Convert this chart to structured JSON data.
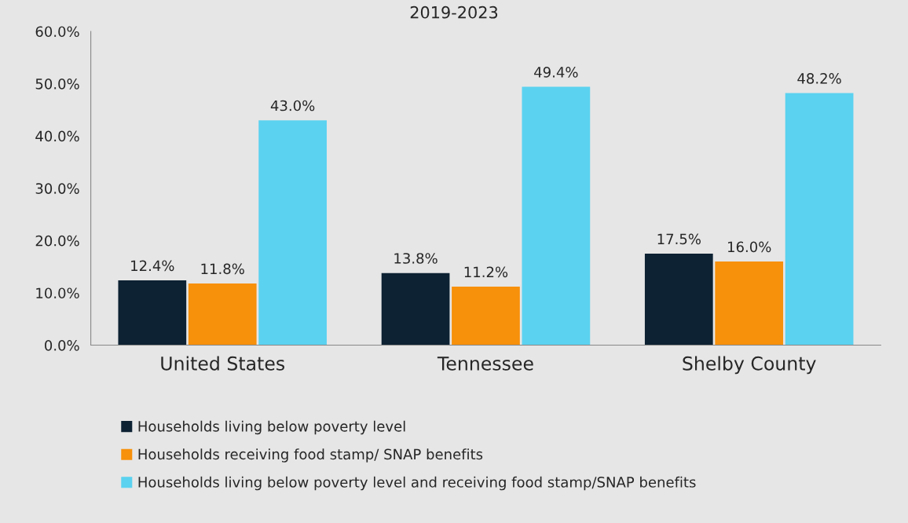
{
  "chart_data": {
    "type": "bar",
    "title": "2019-2023",
    "categories": [
      "United States",
      "Tennessee",
      "Shelby County"
    ],
    "series": [
      {
        "name": "Households living below poverty level",
        "color": "#0d2233",
        "values": [
          12.4,
          13.8,
          17.5
        ],
        "value_labels": [
          "12.4%",
          "13.8%",
          "17.5%"
        ]
      },
      {
        "name": "Households receiving food stamp/ SNAP benefits",
        "color": "#f7900a",
        "values": [
          11.8,
          11.2,
          16.0
        ],
        "value_labels": [
          "11.8%",
          "11.2%",
          "16.0%"
        ]
      },
      {
        "name": "Households living below poverty level and receiving food stamp/SNAP benefits",
        "color": "#5bd2f0",
        "values": [
          43.0,
          49.4,
          48.2
        ],
        "value_labels": [
          "43.0%",
          "49.4%",
          "48.2%"
        ]
      }
    ],
    "ylim": [
      0,
      60
    ],
    "yticks": [
      {
        "value": 0,
        "label": "0.0%"
      },
      {
        "value": 10,
        "label": "10.0%"
      },
      {
        "value": 20,
        "label": "20.0%"
      },
      {
        "value": 30,
        "label": "30.0%"
      },
      {
        "value": 40,
        "label": "40.0%"
      },
      {
        "value": 50,
        "label": "50.0%"
      },
      {
        "value": 60,
        "label": "60.0%"
      }
    ],
    "grid": false,
    "legend": "bottom"
  }
}
